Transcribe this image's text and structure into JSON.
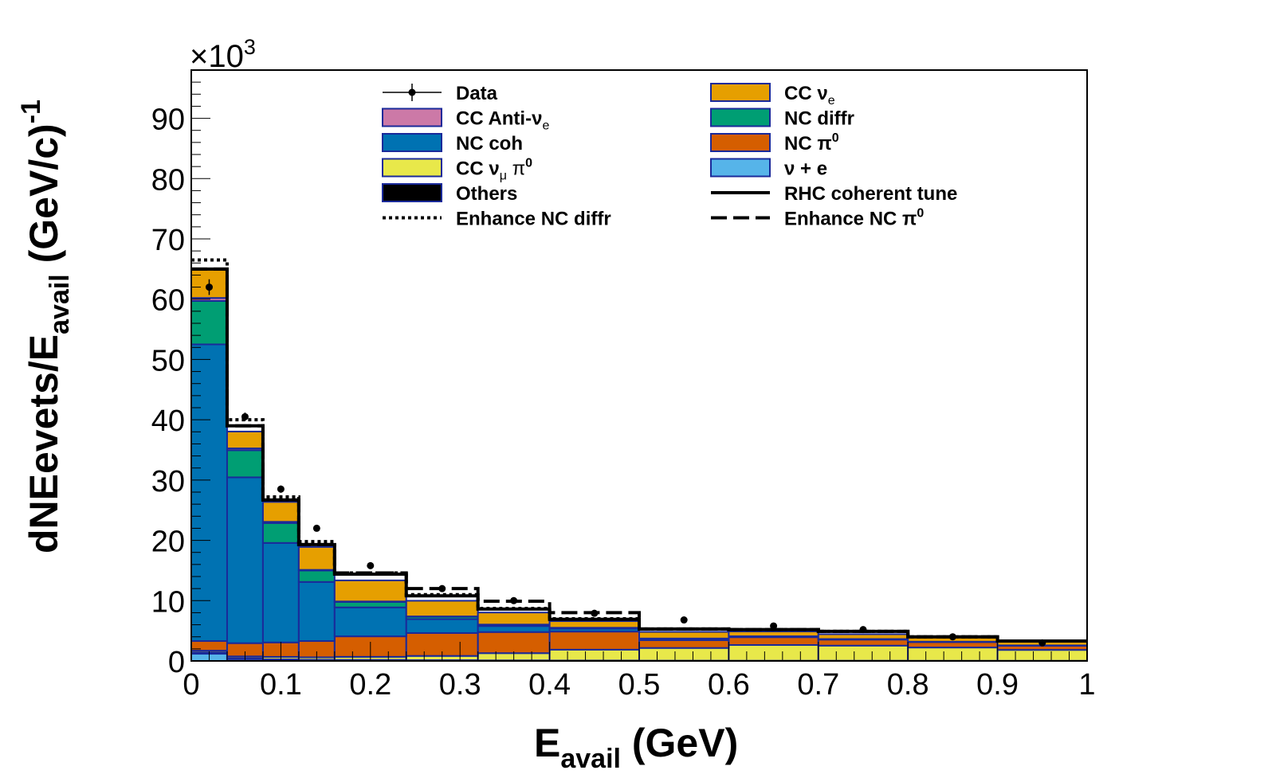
{
  "chart_data": {
    "type": "bar",
    "stacked": true,
    "x_edges": [
      0,
      0.04,
      0.08,
      0.12,
      0.16,
      0.24,
      0.32,
      0.4,
      0.5,
      0.6,
      0.7,
      0.8,
      0.9,
      1.0
    ],
    "xlim": [
      0,
      1
    ],
    "ylim": [
      0,
      98000
    ],
    "x_ticks": [
      0,
      0.1,
      0.2,
      0.3,
      0.4,
      0.5,
      0.6,
      0.7,
      0.8,
      0.9,
      1
    ],
    "x_tick_labels": [
      "0",
      "0.1",
      "0.2",
      "0.3",
      "0.4",
      "0.5",
      "0.6",
      "0.7",
      "0.8",
      "0.9",
      "1"
    ],
    "y_ticks": [
      0,
      10000,
      20000,
      30000,
      40000,
      50000,
      60000,
      70000,
      80000,
      90000
    ],
    "y_tick_labels": [
      "0",
      "10",
      "20",
      "30",
      "40",
      "50",
      "60",
      "70",
      "80",
      "90"
    ],
    "y_multiplier": "×10",
    "y_multiplier_exp": "3",
    "xlabel": {
      "main": "E",
      "sub": "avail",
      "rest": " (GeV)"
    },
    "ylabel": {
      "main": "dNEevets/E",
      "sub": "avail",
      "rest": " (GeV/c)",
      "sup": "-1"
    },
    "series": [
      {
        "name": "ν + e",
        "color": "#56B4E9",
        "values": [
          1200,
          300,
          150,
          100,
          80,
          50,
          30,
          20,
          10,
          10,
          10,
          10,
          10
        ]
      },
      {
        "name": "Others",
        "color": "#000000",
        "values": [
          200,
          150,
          120,
          100,
          100,
          80,
          60,
          50,
          40,
          30,
          30,
          20,
          20
        ]
      },
      {
        "name": "CC ν_μ π^0",
        "color": "#E8E84A",
        "values": [
          300,
          300,
          400,
          400,
          500,
          700,
          1200,
          1800,
          2100,
          2600,
          2500,
          2200,
          1800
        ]
      },
      {
        "name": "NC π^0",
        "color": "#D55E00",
        "values": [
          1600,
          2200,
          2400,
          2700,
          3400,
          3800,
          3500,
          3000,
          1300,
          1300,
          1000,
          900,
          700
        ]
      },
      {
        "name": "NC coh",
        "color": "#0072B2",
        "values": [
          49200,
          27500,
          16500,
          9800,
          4800,
          2300,
          1000,
          500,
          200,
          100,
          50,
          30,
          20
        ]
      },
      {
        "name": "NC diffr",
        "color": "#009E73",
        "values": [
          7200,
          4500,
          3300,
          1900,
          900,
          400,
          200,
          100,
          50,
          30,
          20,
          10,
          10
        ]
      },
      {
        "name": "CC Anti-ν_e",
        "color": "#CC79A7",
        "values": [
          500,
          300,
          200,
          100,
          80,
          50,
          40,
          30,
          20,
          20,
          20,
          10,
          10
        ]
      },
      {
        "name": "CC ν_e",
        "color": "#E69F00",
        "values": [
          4700,
          2800,
          3300,
          3800,
          3500,
          2600,
          2000,
          1100,
          1100,
          800,
          800,
          700,
          600
        ]
      }
    ],
    "lines": [
      {
        "name": "RHC coherent tune",
        "style": "solid",
        "values": [
          65000,
          39000,
          26700,
          19300,
          14400,
          10800,
          8600,
          6900,
          5300,
          5200,
          4900,
          4000,
          3300
        ]
      },
      {
        "name": "Enhance NC diffr",
        "style": "dotted",
        "values": [
          66500,
          40000,
          27200,
          19800,
          14600,
          11000,
          8700,
          7000,
          5300,
          5200,
          4900,
          4000,
          3300
        ]
      },
      {
        "name": "Enhance NC π^0",
        "style": "dashed",
        "values": [
          65000,
          39000,
          26700,
          19300,
          14600,
          12000,
          9900,
          8000,
          5300,
          5200,
          4900,
          4000,
          3300
        ]
      }
    ],
    "data_points": {
      "name": "Data",
      "x": [
        0.02,
        0.06,
        0.1,
        0.14,
        0.2,
        0.28,
        0.36,
        0.45,
        0.55,
        0.65,
        0.75,
        0.85,
        0.95
      ],
      "y": [
        62000,
        40500,
        28500,
        22000,
        15800,
        12000,
        10000,
        7900,
        6800,
        5800,
        5200,
        4000,
        3000
      ],
      "err": [
        1300,
        700,
        600,
        500,
        300,
        200,
        200,
        150,
        120,
        120,
        100,
        90,
        80
      ]
    },
    "legend": {
      "placement": "top-center",
      "columns": [
        [
          {
            "label": "Data",
            "type": "marker"
          },
          {
            "label": "CC Anti-ν",
            "sub": "e",
            "type": "box",
            "color": "#CC79A7"
          },
          {
            "label": "NC coh",
            "type": "box",
            "color": "#0072B2"
          },
          {
            "label": "CC  ν",
            "sub": "μ",
            "after": "  π",
            "sup": "0",
            "type": "box",
            "color": "#E8E84A"
          },
          {
            "label": "Others",
            "type": "box",
            "color": "#000000"
          },
          {
            "label": "Enhance NC diffr",
            "type": "dotted"
          }
        ],
        [
          {
            "label": "CC  ν",
            "sub": "e",
            "type": "box",
            "color": "#E69F00"
          },
          {
            "label": "NC diffr",
            "type": "box",
            "color": "#009E73"
          },
          {
            "label": "NC  π",
            "sup": "0",
            "type": "box",
            "color": "#D55E00"
          },
          {
            "label": "ν + e",
            "type": "box",
            "color": "#56B4E9"
          },
          {
            "label": "RHC coherent tune",
            "type": "solid"
          },
          {
            "label": "Enhance NC  π",
            "sup": "0",
            "type": "dashed"
          }
        ]
      ]
    }
  }
}
